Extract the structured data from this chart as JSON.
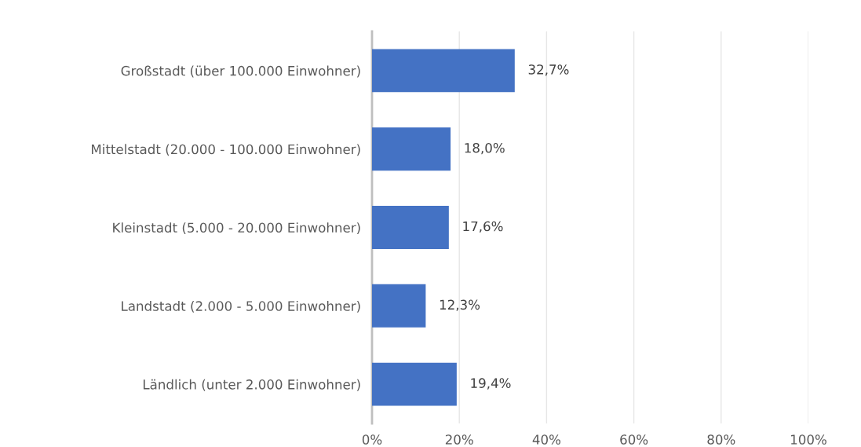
{
  "chart_data": {
    "type": "bar",
    "orientation": "horizontal",
    "categories": [
      "Großstadt (über 100.000 Einwohner)",
      "Mittelstadt (20.000 - 100.000 Einwohner)",
      "Kleinstadt (5.000 - 20.000 Einwohner)",
      "Landstadt (2.000 - 5.000 Einwohner)",
      "Ländlich (unter 2.000 Einwohner)"
    ],
    "values": [
      32.7,
      18.0,
      17.6,
      12.3,
      19.4
    ],
    "value_labels": [
      "32,7%",
      "18,0%",
      "17,6%",
      "12,3%",
      "19,4%"
    ],
    "color": "#4472c4",
    "xlim": [
      0,
      100
    ],
    "xticks": [
      {
        "value": 0,
        "label": "0%"
      },
      {
        "value": 20,
        "label": "20%"
      },
      {
        "value": 40,
        "label": "40%"
      },
      {
        "value": 60,
        "label": "60%"
      },
      {
        "value": 80,
        "label": "80%"
      },
      {
        "value": 100,
        "label": "100%"
      }
    ],
    "grid": "x",
    "legend": false
  }
}
